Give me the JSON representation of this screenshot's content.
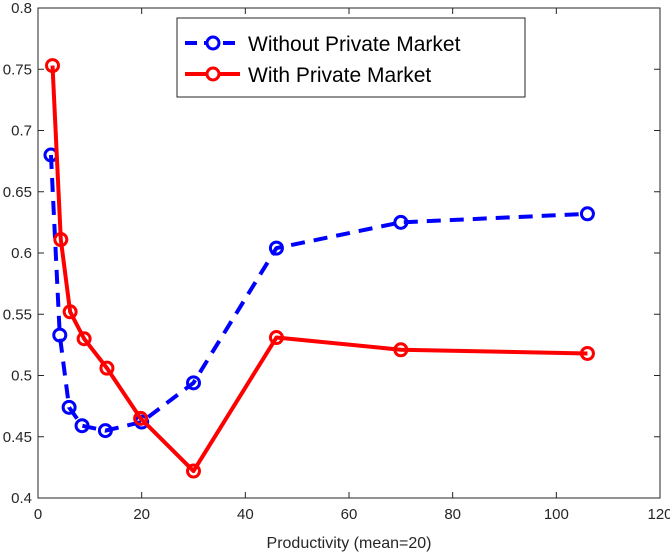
{
  "chart_data": {
    "type": "line",
    "title": "",
    "xlabel": "Productivity (mean=20)",
    "ylabel": "",
    "xlim": [
      0,
      120
    ],
    "ylim": [
      0.4,
      0.8
    ],
    "xticks": [
      0,
      20,
      40,
      60,
      80,
      100,
      120
    ],
    "xtick_labels": [
      "0",
      "20",
      "40",
      "60",
      "80",
      "100",
      "120"
    ],
    "yticks": [
      0.4,
      0.45,
      0.5,
      0.55,
      0.6,
      0.65,
      0.7,
      0.75,
      0.8
    ],
    "ytick_labels": [
      "0.4",
      "0.45",
      "0.5",
      "0.55",
      "0.6",
      "0.65",
      "0.7",
      "0.75",
      "0.8"
    ],
    "grid": false,
    "legend_position": "top-center",
    "series": [
      {
        "name": "Without Private Market",
        "color": "#0000ff",
        "line_style": "dashed",
        "marker": "circle",
        "x": [
          2.5,
          4.2,
          6.0,
          8.5,
          13.0,
          20.0,
          30.0,
          46.0,
          70.0,
          106.0
        ],
        "y": [
          0.68,
          0.533,
          0.474,
          0.459,
          0.455,
          0.462,
          0.494,
          0.604,
          0.625,
          0.632
        ]
      },
      {
        "name": "With Private Market",
        "color": "#ff0000",
        "line_style": "solid",
        "marker": "circle",
        "x": [
          2.8,
          4.4,
          6.2,
          8.9,
          13.3,
          19.8,
          30.0,
          46.0,
          70.0,
          106.0
        ],
        "y": [
          0.753,
          0.611,
          0.552,
          0.53,
          0.506,
          0.465,
          0.422,
          0.531,
          0.521,
          0.518
        ]
      }
    ]
  }
}
